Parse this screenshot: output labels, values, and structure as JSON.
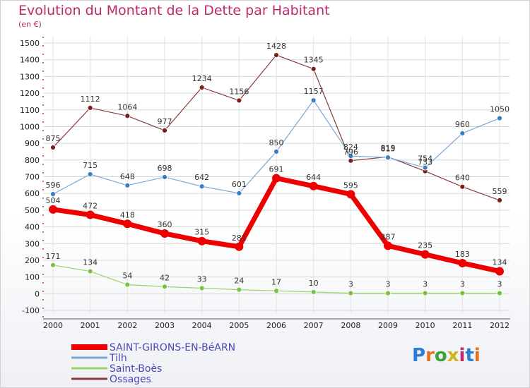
{
  "title": "Evolution du Montant de la Dette par Habitant",
  "subtitle": "(en €)",
  "logo": {
    "text": "Proxiti",
    "colors": [
      "#2a7fd4",
      "#e8701a",
      "#3aa33a",
      "#d4b21a",
      "#c0286c",
      "#2a7fd4",
      "#e8701a"
    ]
  },
  "chart_data": {
    "type": "line",
    "x": [
      "2000",
      "2001",
      "2002",
      "2003",
      "2004",
      "2005",
      "2006",
      "2007",
      "2008",
      "2009",
      "2010",
      "2011",
      "2012"
    ],
    "ylim": [
      -100,
      1500
    ],
    "yticks": [
      "-100",
      "0",
      "100",
      "200",
      "300",
      "400",
      "500",
      "600",
      "700",
      "800",
      "900",
      "1000",
      "1100",
      "1200",
      "1300",
      "1400",
      "1500"
    ],
    "grid": true,
    "legend_placement": "bottom-left",
    "series": [
      {
        "name": "Ossages",
        "color": "#7a1c1c",
        "line_color": "#8b3a3a",
        "width": 1.2,
        "marker": 3.5,
        "values": [
          875,
          1112,
          1064,
          977,
          1234,
          1156,
          1428,
          1345,
          796,
          819,
          733,
          640,
          559
        ],
        "labels": [
          "875",
          "1112",
          "1064",
          "977",
          "1234",
          "1156",
          "1428",
          "1345",
          "796",
          "819",
          "733",
          "640",
          "559"
        ]
      },
      {
        "name": "Tilh",
        "color": "#3a7ec0",
        "line_color": "#7aa8d6",
        "width": 1.2,
        "marker": 3.5,
        "values": [
          596,
          715,
          648,
          698,
          642,
          601,
          850,
          1157,
          824,
          815,
          754,
          960,
          1050
        ],
        "labels": [
          "596",
          "715",
          "648",
          "698",
          "642",
          "601",
          "850",
          "1157",
          "824",
          "815",
          "754",
          "960",
          "1050"
        ]
      },
      {
        "name": "Saint-Boès",
        "color": "#7ac142",
        "line_color": "#9ad466",
        "width": 1.2,
        "marker": 3.5,
        "values": [
          171,
          134,
          54,
          42,
          33,
          24,
          17,
          10,
          3,
          3,
          3,
          3,
          3
        ],
        "labels": [
          "171",
          "134",
          "54",
          "42",
          "33",
          "24",
          "17",
          "10",
          "3",
          "3",
          "3",
          "3",
          "3"
        ]
      },
      {
        "name": "SAINT-GIRONS-EN-BéARN",
        "color": "#ee0000",
        "line_color": "#ee0000",
        "width": 7,
        "marker": 6,
        "values": [
          504,
          472,
          418,
          360,
          315,
          281,
          691,
          644,
          595,
          287,
          235,
          183,
          134
        ],
        "labels": [
          "504",
          "472",
          "418",
          "360",
          "315",
          "281",
          "691",
          "644",
          "595",
          "287",
          "235",
          "183",
          "134"
        ]
      }
    ]
  }
}
